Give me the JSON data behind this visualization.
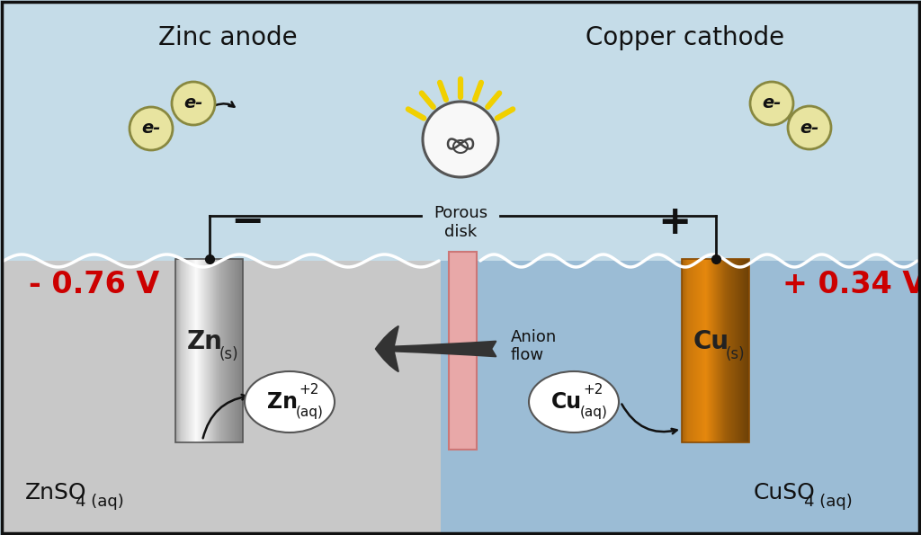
{
  "bg_air_color": "#c5dce8",
  "bg_left_color": "#c8c8c8",
  "bg_right_color": "#9bbcd5",
  "border_color": "#111111",
  "porous_disk_color": "#e8a8a8",
  "porous_disk_edge": "#cc7777",
  "wire_color": "#111111",
  "electron_fill": "#e8e4a0",
  "electron_edge": "#888840",
  "ion_fill": "#ffffff",
  "ion_edge": "#555555",
  "voltage_color": "#cc0000",
  "title_left": "Zinc anode",
  "title_right": "Copper cathode",
  "voltage_left": "- 0.76 V",
  "voltage_right": "+ 0.34 V",
  "label_porous": "Porous\ndisk",
  "label_anion": "Anion\nflow",
  "label_znso4": "ZnSO",
  "label_znso4_sub": "4 (aq)",
  "label_cuso4": "CuSO",
  "label_cuso4_sub": "4 (aq)",
  "ray_color": "#f0d000",
  "bulb_fill": "#f8f8f8",
  "bulb_edge": "#555555"
}
